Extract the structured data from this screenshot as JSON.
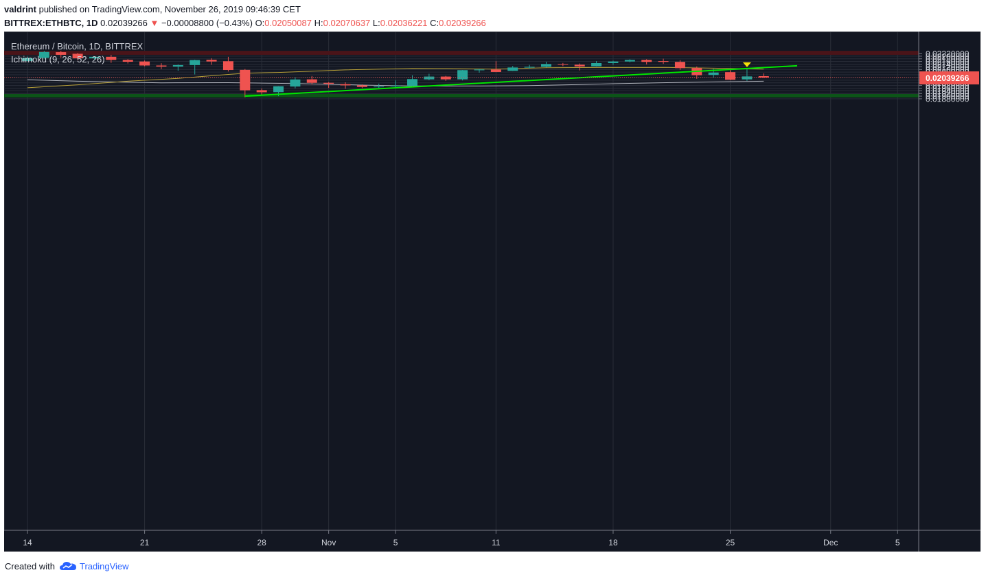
{
  "header": {
    "author": "valdrint",
    "published_text": "published on TradingView.com, November 26, 2019 09:46:39 CET",
    "symbol": "BITTREX:ETHBTC, 1D",
    "last_price": "0.02039266",
    "change_arrow": "▼",
    "change": "−0.00008800 (−0.43%)",
    "o_label": "O:",
    "o_value": "0.02050087",
    "h_label": "H:",
    "h_value": "0.02070637",
    "l_label": "L:",
    "l_value": "0.02036221",
    "c_label": "C:",
    "c_value": "0.02039266"
  },
  "legend": {
    "title": "Ethereum / Bitcoin, 1D, BITTREX",
    "indicator": "Ichimoku (9, 26, 52, 26)"
  },
  "footer": {
    "created_with": "Created with",
    "brand": "TradingView"
  },
  "colors": {
    "background": "#131722",
    "bull": "#26a69a",
    "bear": "#ef5350",
    "trendline": "#00e600",
    "conversion_line": "#b8a038",
    "base_line": "#b2b5be",
    "resistance_zone": "#4a1419",
    "support_zone": "#0c5418",
    "price_tag": "#ef5350",
    "marker": "#f5e10a"
  },
  "chart_data": {
    "type": "candlestick",
    "title": "Ethereum / Bitcoin, 1D, BITTREX",
    "x_ticks": [
      {
        "date": "2019-10-14",
        "label": "14"
      },
      {
        "date": "2019-10-21",
        "label": "21"
      },
      {
        "date": "2019-10-28",
        "label": "28"
      },
      {
        "date": "2019-11-01",
        "label": "Nov"
      },
      {
        "date": "2019-11-05",
        "label": "5"
      },
      {
        "date": "2019-11-11",
        "label": "11"
      },
      {
        "date": "2019-11-18",
        "label": "18"
      },
      {
        "date": "2019-11-25",
        "label": "25"
      },
      {
        "date": "2019-12-01",
        "label": "Dec"
      },
      {
        "date": "2019-12-05",
        "label": "5"
      }
    ],
    "y_ticks": [
      "0.01880000",
      "0.01900000",
      "0.01920000",
      "0.01940000",
      "0.01960000",
      "0.01980000",
      "0.02000000",
      "0.02020000",
      "0.02040000",
      "0.02060000",
      "0.02080000",
      "0.02100000",
      "0.02120000",
      "0.02140000",
      "0.02160000",
      "0.02180000",
      "0.02200000",
      "0.02220000"
    ],
    "current_price": "0.02039266",
    "candles": [
      {
        "date": "2019-10-14",
        "o": 0.02164,
        "h": 0.02197,
        "l": 0.02161,
        "c": 0.02187
      },
      {
        "date": "2019-10-15",
        "o": 0.02187,
        "h": 0.0224,
        "l": 0.02182,
        "c": 0.02232
      },
      {
        "date": "2019-10-16",
        "o": 0.0223,
        "h": 0.0224,
        "l": 0.02187,
        "c": 0.0221
      },
      {
        "date": "2019-10-17",
        "o": 0.02218,
        "h": 0.02224,
        "l": 0.0217,
        "c": 0.02184
      },
      {
        "date": "2019-10-18",
        "o": 0.02184,
        "h": 0.02196,
        "l": 0.02177,
        "c": 0.02195
      },
      {
        "date": "2019-10-19",
        "o": 0.02195,
        "h": 0.0221,
        "l": 0.0215,
        "c": 0.02172
      },
      {
        "date": "2019-10-20",
        "o": 0.02172,
        "h": 0.02178,
        "l": 0.02145,
        "c": 0.02158
      },
      {
        "date": "2019-10-21",
        "o": 0.0216,
        "h": 0.02167,
        "l": 0.02124,
        "c": 0.0213
      },
      {
        "date": "2019-10-22",
        "o": 0.0213,
        "h": 0.02147,
        "l": 0.02103,
        "c": 0.02122
      },
      {
        "date": "2019-10-23",
        "o": 0.02122,
        "h": 0.02137,
        "l": 0.02091,
        "c": 0.02133
      },
      {
        "date": "2019-10-24",
        "o": 0.02133,
        "h": 0.02174,
        "l": 0.02063,
        "c": 0.02171
      },
      {
        "date": "2019-10-25",
        "o": 0.02173,
        "h": 0.02185,
        "l": 0.02135,
        "c": 0.0216
      },
      {
        "date": "2019-10-26",
        "o": 0.02162,
        "h": 0.02195,
        "l": 0.02085,
        "c": 0.02096
      },
      {
        "date": "2019-10-27",
        "o": 0.02097,
        "h": 0.02104,
        "l": 0.0189,
        "c": 0.01944
      },
      {
        "date": "2019-10-28",
        "o": 0.01945,
        "h": 0.01958,
        "l": 0.0191,
        "c": 0.01929
      },
      {
        "date": "2019-10-29",
        "o": 0.0193,
        "h": 0.01975,
        "l": 0.019,
        "c": 0.01974
      },
      {
        "date": "2019-10-30",
        "o": 0.01972,
        "h": 0.02043,
        "l": 0.01958,
        "c": 0.02025
      },
      {
        "date": "2019-10-31",
        "o": 0.02026,
        "h": 0.02051,
        "l": 0.01987,
        "c": 0.02
      },
      {
        "date": "2019-11-01",
        "o": 0.02,
        "h": 0.02005,
        "l": 0.01962,
        "c": 0.01993
      },
      {
        "date": "2019-11-02",
        "o": 0.0199,
        "h": 0.02004,
        "l": 0.01955,
        "c": 0.01981
      },
      {
        "date": "2019-11-03",
        "o": 0.01981,
        "h": 0.01988,
        "l": 0.0196,
        "c": 0.01969
      },
      {
        "date": "2019-11-04",
        "o": 0.01967,
        "h": 0.01994,
        "l": 0.01962,
        "c": 0.01972
      },
      {
        "date": "2019-11-05",
        "o": 0.01973,
        "h": 0.02018,
        "l": 0.01962,
        "c": 0.01979
      },
      {
        "date": "2019-11-06",
        "o": 0.01977,
        "h": 0.02056,
        "l": 0.01975,
        "c": 0.02028
      },
      {
        "date": "2019-11-07",
        "o": 0.02026,
        "h": 0.02068,
        "l": 0.02019,
        "c": 0.02047
      },
      {
        "date": "2019-11-08",
        "o": 0.02047,
        "h": 0.02052,
        "l": 0.02015,
        "c": 0.02026
      },
      {
        "date": "2019-11-09",
        "o": 0.02026,
        "h": 0.02096,
        "l": 0.02018,
        "c": 0.02095
      },
      {
        "date": "2019-11-10",
        "o": 0.02094,
        "h": 0.02104,
        "l": 0.02076,
        "c": 0.021
      },
      {
        "date": "2019-11-11",
        "o": 0.021,
        "h": 0.02162,
        "l": 0.0208,
        "c": 0.02081
      },
      {
        "date": "2019-11-12",
        "o": 0.0209,
        "h": 0.02127,
        "l": 0.02089,
        "c": 0.02115
      },
      {
        "date": "2019-11-13",
        "o": 0.02114,
        "h": 0.02134,
        "l": 0.02106,
        "c": 0.0212
      },
      {
        "date": "2019-11-14",
        "o": 0.0212,
        "h": 0.02158,
        "l": 0.02115,
        "c": 0.02141
      },
      {
        "date": "2019-11-15",
        "o": 0.02141,
        "h": 0.02149,
        "l": 0.02125,
        "c": 0.02138
      },
      {
        "date": "2019-11-16",
        "o": 0.02136,
        "h": 0.02145,
        "l": 0.02093,
        "c": 0.02123
      },
      {
        "date": "2019-11-17",
        "o": 0.02124,
        "h": 0.02163,
        "l": 0.02123,
        "c": 0.02148
      },
      {
        "date": "2019-11-18",
        "o": 0.02148,
        "h": 0.02166,
        "l": 0.02135,
        "c": 0.0216
      },
      {
        "date": "2019-11-19",
        "o": 0.0216,
        "h": 0.02177,
        "l": 0.02154,
        "c": 0.02172
      },
      {
        "date": "2019-11-20",
        "o": 0.02172,
        "h": 0.02177,
        "l": 0.02138,
        "c": 0.02157
      },
      {
        "date": "2019-11-21",
        "o": 0.02163,
        "h": 0.02181,
        "l": 0.02142,
        "c": 0.02157
      },
      {
        "date": "2019-11-22",
        "o": 0.02157,
        "h": 0.0217,
        "l": 0.02097,
        "c": 0.0211
      },
      {
        "date": "2019-11-23",
        "o": 0.02111,
        "h": 0.02123,
        "l": 0.0203,
        "c": 0.02057
      },
      {
        "date": "2019-11-24",
        "o": 0.02059,
        "h": 0.02105,
        "l": 0.0204,
        "c": 0.02077
      },
      {
        "date": "2019-11-25",
        "o": 0.0208,
        "h": 0.02095,
        "l": 0.0202,
        "c": 0.02023
      },
      {
        "date": "2019-11-26",
        "o": 0.02026,
        "h": 0.0211,
        "l": 0.02014,
        "c": 0.02048
      },
      {
        "date": "2019-11-27",
        "o": 0.0205,
        "h": 0.02071,
        "l": 0.02036,
        "c": 0.02039
      }
    ],
    "conversion_line": [
      {
        "date": "2019-10-14",
        "v": 0.01963
      },
      {
        "date": "2019-10-17",
        "v": 0.01985
      },
      {
        "date": "2019-10-20",
        "v": 0.02012
      },
      {
        "date": "2019-10-23",
        "v": 0.02033
      },
      {
        "date": "2019-10-26",
        "v": 0.02063
      },
      {
        "date": "2019-10-27",
        "v": 0.02072
      },
      {
        "date": "2019-10-29",
        "v": 0.02078
      },
      {
        "date": "2019-11-02",
        "v": 0.02097
      },
      {
        "date": "2019-11-06",
        "v": 0.02108
      },
      {
        "date": "2019-11-08",
        "v": 0.02107
      },
      {
        "date": "2019-11-11",
        "v": 0.02103
      },
      {
        "date": "2019-11-14",
        "v": 0.02113
      },
      {
        "date": "2019-11-17",
        "v": 0.02115
      },
      {
        "date": "2019-11-20",
        "v": 0.02115
      },
      {
        "date": "2019-11-21",
        "v": 0.02116
      },
      {
        "date": "2019-11-24",
        "v": 0.0211
      },
      {
        "date": "2019-11-27",
        "v": 0.02103
      }
    ],
    "base_line": [
      {
        "date": "2019-10-14",
        "v": 0.02023
      },
      {
        "date": "2019-10-17",
        "v": 0.02012
      },
      {
        "date": "2019-10-22",
        "v": 0.02
      },
      {
        "date": "2019-10-26",
        "v": 0.02001
      },
      {
        "date": "2019-10-30",
        "v": 0.01995
      },
      {
        "date": "2019-11-03",
        "v": 0.01983
      },
      {
        "date": "2019-11-06",
        "v": 0.01976
      },
      {
        "date": "2019-11-10",
        "v": 0.01976
      },
      {
        "date": "2019-11-13",
        "v": 0.01979
      },
      {
        "date": "2019-11-16",
        "v": 0.01987
      },
      {
        "date": "2019-11-19",
        "v": 0.01996
      },
      {
        "date": "2019-11-22",
        "v": 0.02003
      },
      {
        "date": "2019-11-25",
        "v": 0.02009
      },
      {
        "date": "2019-11-27",
        "v": 0.02012
      }
    ],
    "trendline": {
      "from": {
        "date": "2019-10-27",
        "v": 0.019
      },
      "to": {
        "date": "2019-11-29",
        "v": 0.02128
      }
    },
    "resistance_zone": [
      0.0221,
      0.0224
    ],
    "support_zone": [
      0.0189,
      0.01916
    ],
    "marker": {
      "date": "2019-11-26",
      "v": 0.02133
    }
  }
}
